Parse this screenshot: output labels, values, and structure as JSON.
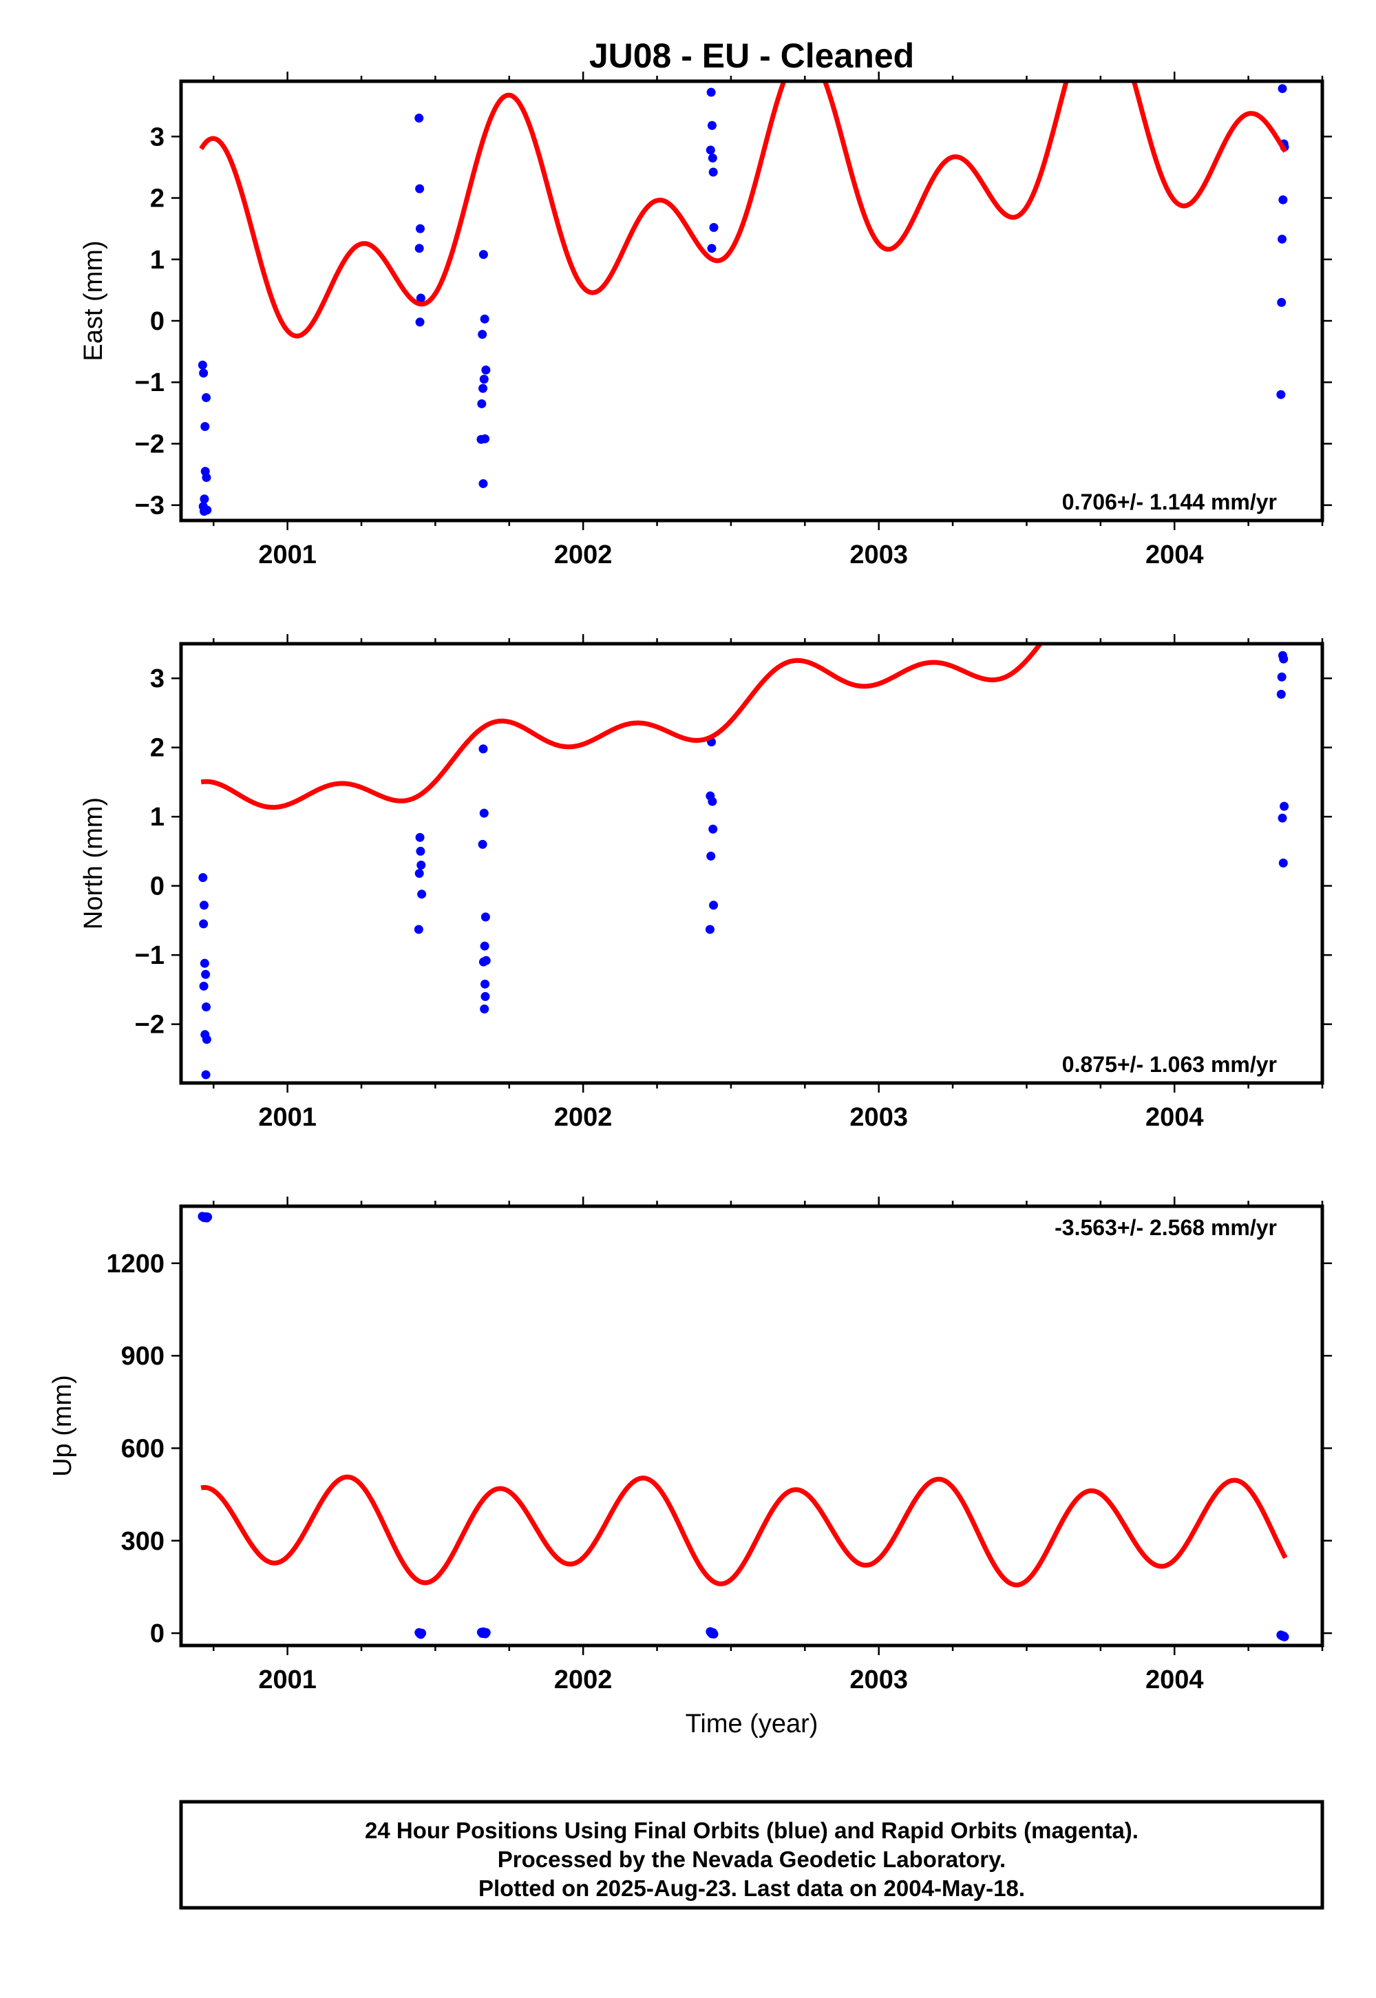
{
  "title": "JU08  - EU - Cleaned",
  "x_axis_label": "Time (year)",
  "x_ticks": [
    "2001",
    "2002",
    "2003",
    "2004"
  ],
  "footer": {
    "line1": "24 Hour Positions Using Final Orbits (blue) and Rapid Orbits (magenta).",
    "line2": "Processed by the Nevada Geodetic Laboratory.",
    "line3": "Plotted on 2025-Aug-23. Last data on 2004-May-18."
  },
  "colors": {
    "observations": "#0000ff",
    "model_fit": "#ff0000"
  },
  "chart_data": [
    {
      "type": "scatter",
      "ylabel": "East (mm)",
      "rate_text": "0.706+/- 1.144 mm/yr",
      "rate_position": "bottom-right",
      "xlim": [
        2000.64,
        2004.5
      ],
      "ylim": [
        -3.25,
        3.9
      ],
      "yticks": [
        -3,
        -2,
        -1,
        0,
        1,
        2,
        3
      ],
      "yticklabels": [
        "−3",
        "−2",
        "−1",
        "0",
        "1",
        "2",
        "3"
      ],
      "series": [
        {
          "kind": "scatter",
          "points": [
            [
              2000.713,
              -0.72
            ],
            [
              2000.716,
              -0.85
            ],
            [
              2000.721,
              -1.72
            ],
            [
              2000.725,
              -1.25
            ],
            [
              2000.722,
              -2.45
            ],
            [
              2000.726,
              -2.55
            ],
            [
              2000.719,
              -2.9
            ],
            [
              2000.715,
              -3.02
            ],
            [
              2000.718,
              -3.1
            ],
            [
              2000.728,
              -3.08
            ],
            [
              2001.445,
              3.3
            ],
            [
              2001.447,
              2.15
            ],
            [
              2001.449,
              1.5
            ],
            [
              2001.446,
              1.18
            ],
            [
              2001.451,
              0.37
            ],
            [
              2001.448,
              -0.02
            ],
            [
              2001.663,
              1.08
            ],
            [
              2001.659,
              -0.22
            ],
            [
              2001.667,
              0.03
            ],
            [
              2001.661,
              -1.1
            ],
            [
              2001.657,
              -1.35
            ],
            [
              2001.671,
              -0.8
            ],
            [
              2001.665,
              -0.95
            ],
            [
              2001.655,
              -1.93
            ],
            [
              2001.668,
              -1.92
            ],
            [
              2001.662,
              -2.65
            ],
            [
              2002.433,
              3.72
            ],
            [
              2002.436,
              3.18
            ],
            [
              2002.431,
              2.78
            ],
            [
              2002.438,
              2.65
            ],
            [
              2002.44,
              2.42
            ],
            [
              2002.442,
              1.52
            ],
            [
              2002.435,
              1.18
            ],
            [
              2004.365,
              3.78
            ],
            [
              2004.37,
              2.88
            ],
            [
              2004.372,
              2.83
            ],
            [
              2004.367,
              1.97
            ],
            [
              2004.364,
              1.33
            ],
            [
              2004.362,
              0.3
            ],
            [
              2004.36,
              -1.2
            ]
          ]
        },
        {
          "kind": "line",
          "model": {
            "a": 0.3316,
            "b": 0.706,
            "s1": -1.034,
            "c1": -0.125,
            "s2": 0.022,
            "c2": -1.073
          }
        }
      ]
    },
    {
      "type": "scatter",
      "ylabel": "North (mm)",
      "rate_text": "0.875+/- 1.063 mm/yr",
      "rate_position": "bottom-right",
      "xlim": [
        2000.64,
        2004.5
      ],
      "ylim": [
        -2.85,
        3.5
      ],
      "yticks": [
        -2,
        -1,
        0,
        1,
        2,
        3
      ],
      "yticklabels": [
        "−2",
        "−1",
        "0",
        "1",
        "2",
        "3"
      ],
      "series": [
        {
          "kind": "scatter",
          "points": [
            [
              2000.714,
              0.12
            ],
            [
              2000.718,
              -0.28
            ],
            [
              2000.716,
              -0.55
            ],
            [
              2000.72,
              -1.12
            ],
            [
              2000.723,
              -1.28
            ],
            [
              2000.717,
              -1.45
            ],
            [
              2000.725,
              -1.75
            ],
            [
              2000.721,
              -2.15
            ],
            [
              2000.727,
              -2.22
            ],
            [
              2000.724,
              -2.73
            ],
            [
              2001.448,
              0.7
            ],
            [
              2001.45,
              0.5
            ],
            [
              2001.452,
              0.3
            ],
            [
              2001.446,
              0.18
            ],
            [
              2001.454,
              -0.12
            ],
            [
              2001.444,
              -0.63
            ],
            [
              2001.662,
              1.98
            ],
            [
              2001.665,
              1.05
            ],
            [
              2001.66,
              0.6
            ],
            [
              2001.67,
              -0.45
            ],
            [
              2001.667,
              -0.87
            ],
            [
              2001.672,
              -1.08
            ],
            [
              2001.663,
              -1.1
            ],
            [
              2001.668,
              -1.42
            ],
            [
              2001.669,
              -1.6
            ],
            [
              2001.666,
              -1.78
            ],
            [
              2002.434,
              2.08
            ],
            [
              2002.43,
              1.3
            ],
            [
              2002.437,
              1.22
            ],
            [
              2002.439,
              0.82
            ],
            [
              2002.432,
              0.43
            ],
            [
              2002.441,
              -0.28
            ],
            [
              2002.429,
              -0.63
            ],
            [
              2004.366,
              3.33
            ],
            [
              2004.369,
              3.28
            ],
            [
              2004.363,
              3.02
            ],
            [
              2004.361,
              2.77
            ],
            [
              2004.371,
              1.15
            ],
            [
              2004.365,
              0.98
            ],
            [
              2004.368,
              0.33
            ]
          ]
        },
        {
          "kind": "line",
          "model": {
            "a": 0.4157,
            "b": 0.875,
            "s1": -0.255,
            "c1": 0.05,
            "s2": 0.174,
            "c2": -0.168
          }
        }
      ]
    },
    {
      "type": "scatter",
      "ylabel": "Up (mm)",
      "rate_text": "-3.563+/- 2.568 mm/yr",
      "rate_position": "top-right",
      "xlim": [
        2000.64,
        2004.5
      ],
      "ylim": [
        -40,
        1385
      ],
      "yticks": [
        0,
        300,
        600,
        900,
        1200
      ],
      "yticklabels": [
        "0",
        "300",
        "600",
        "900",
        "1200"
      ],
      "series": [
        {
          "kind": "scatter",
          "points": [
            [
              2000.712,
              1352
            ],
            [
              2000.715,
              1350
            ],
            [
              2000.718,
              1348
            ],
            [
              2000.721,
              1349
            ],
            [
              2000.724,
              1351
            ],
            [
              2000.727,
              1347
            ],
            [
              2000.73,
              1350
            ],
            [
              2001.445,
              2
            ],
            [
              2001.448,
              -2
            ],
            [
              2001.451,
              -4
            ],
            [
              2001.454,
              0
            ],
            [
              2001.656,
              3
            ],
            [
              2001.659,
              -1
            ],
            [
              2001.663,
              4
            ],
            [
              2001.666,
              0
            ],
            [
              2001.669,
              -2
            ],
            [
              2001.672,
              2
            ],
            [
              2002.43,
              5
            ],
            [
              2002.433,
              1
            ],
            [
              2002.436,
              -2
            ],
            [
              2002.439,
              2
            ],
            [
              2002.442,
              -3
            ],
            [
              2004.36,
              -6
            ],
            [
              2004.363,
              -8
            ],
            [
              2004.366,
              -10
            ],
            [
              2004.369,
              -9
            ],
            [
              2004.372,
              -12
            ]
          ]
        },
        {
          "kind": "line",
          "model": {
            "a": 346.2,
            "b": -3.563,
            "s1": 9.8,
            "c1": 34.5,
            "s2": 68.8,
            "c2": -128.9
          }
        }
      ]
    }
  ]
}
